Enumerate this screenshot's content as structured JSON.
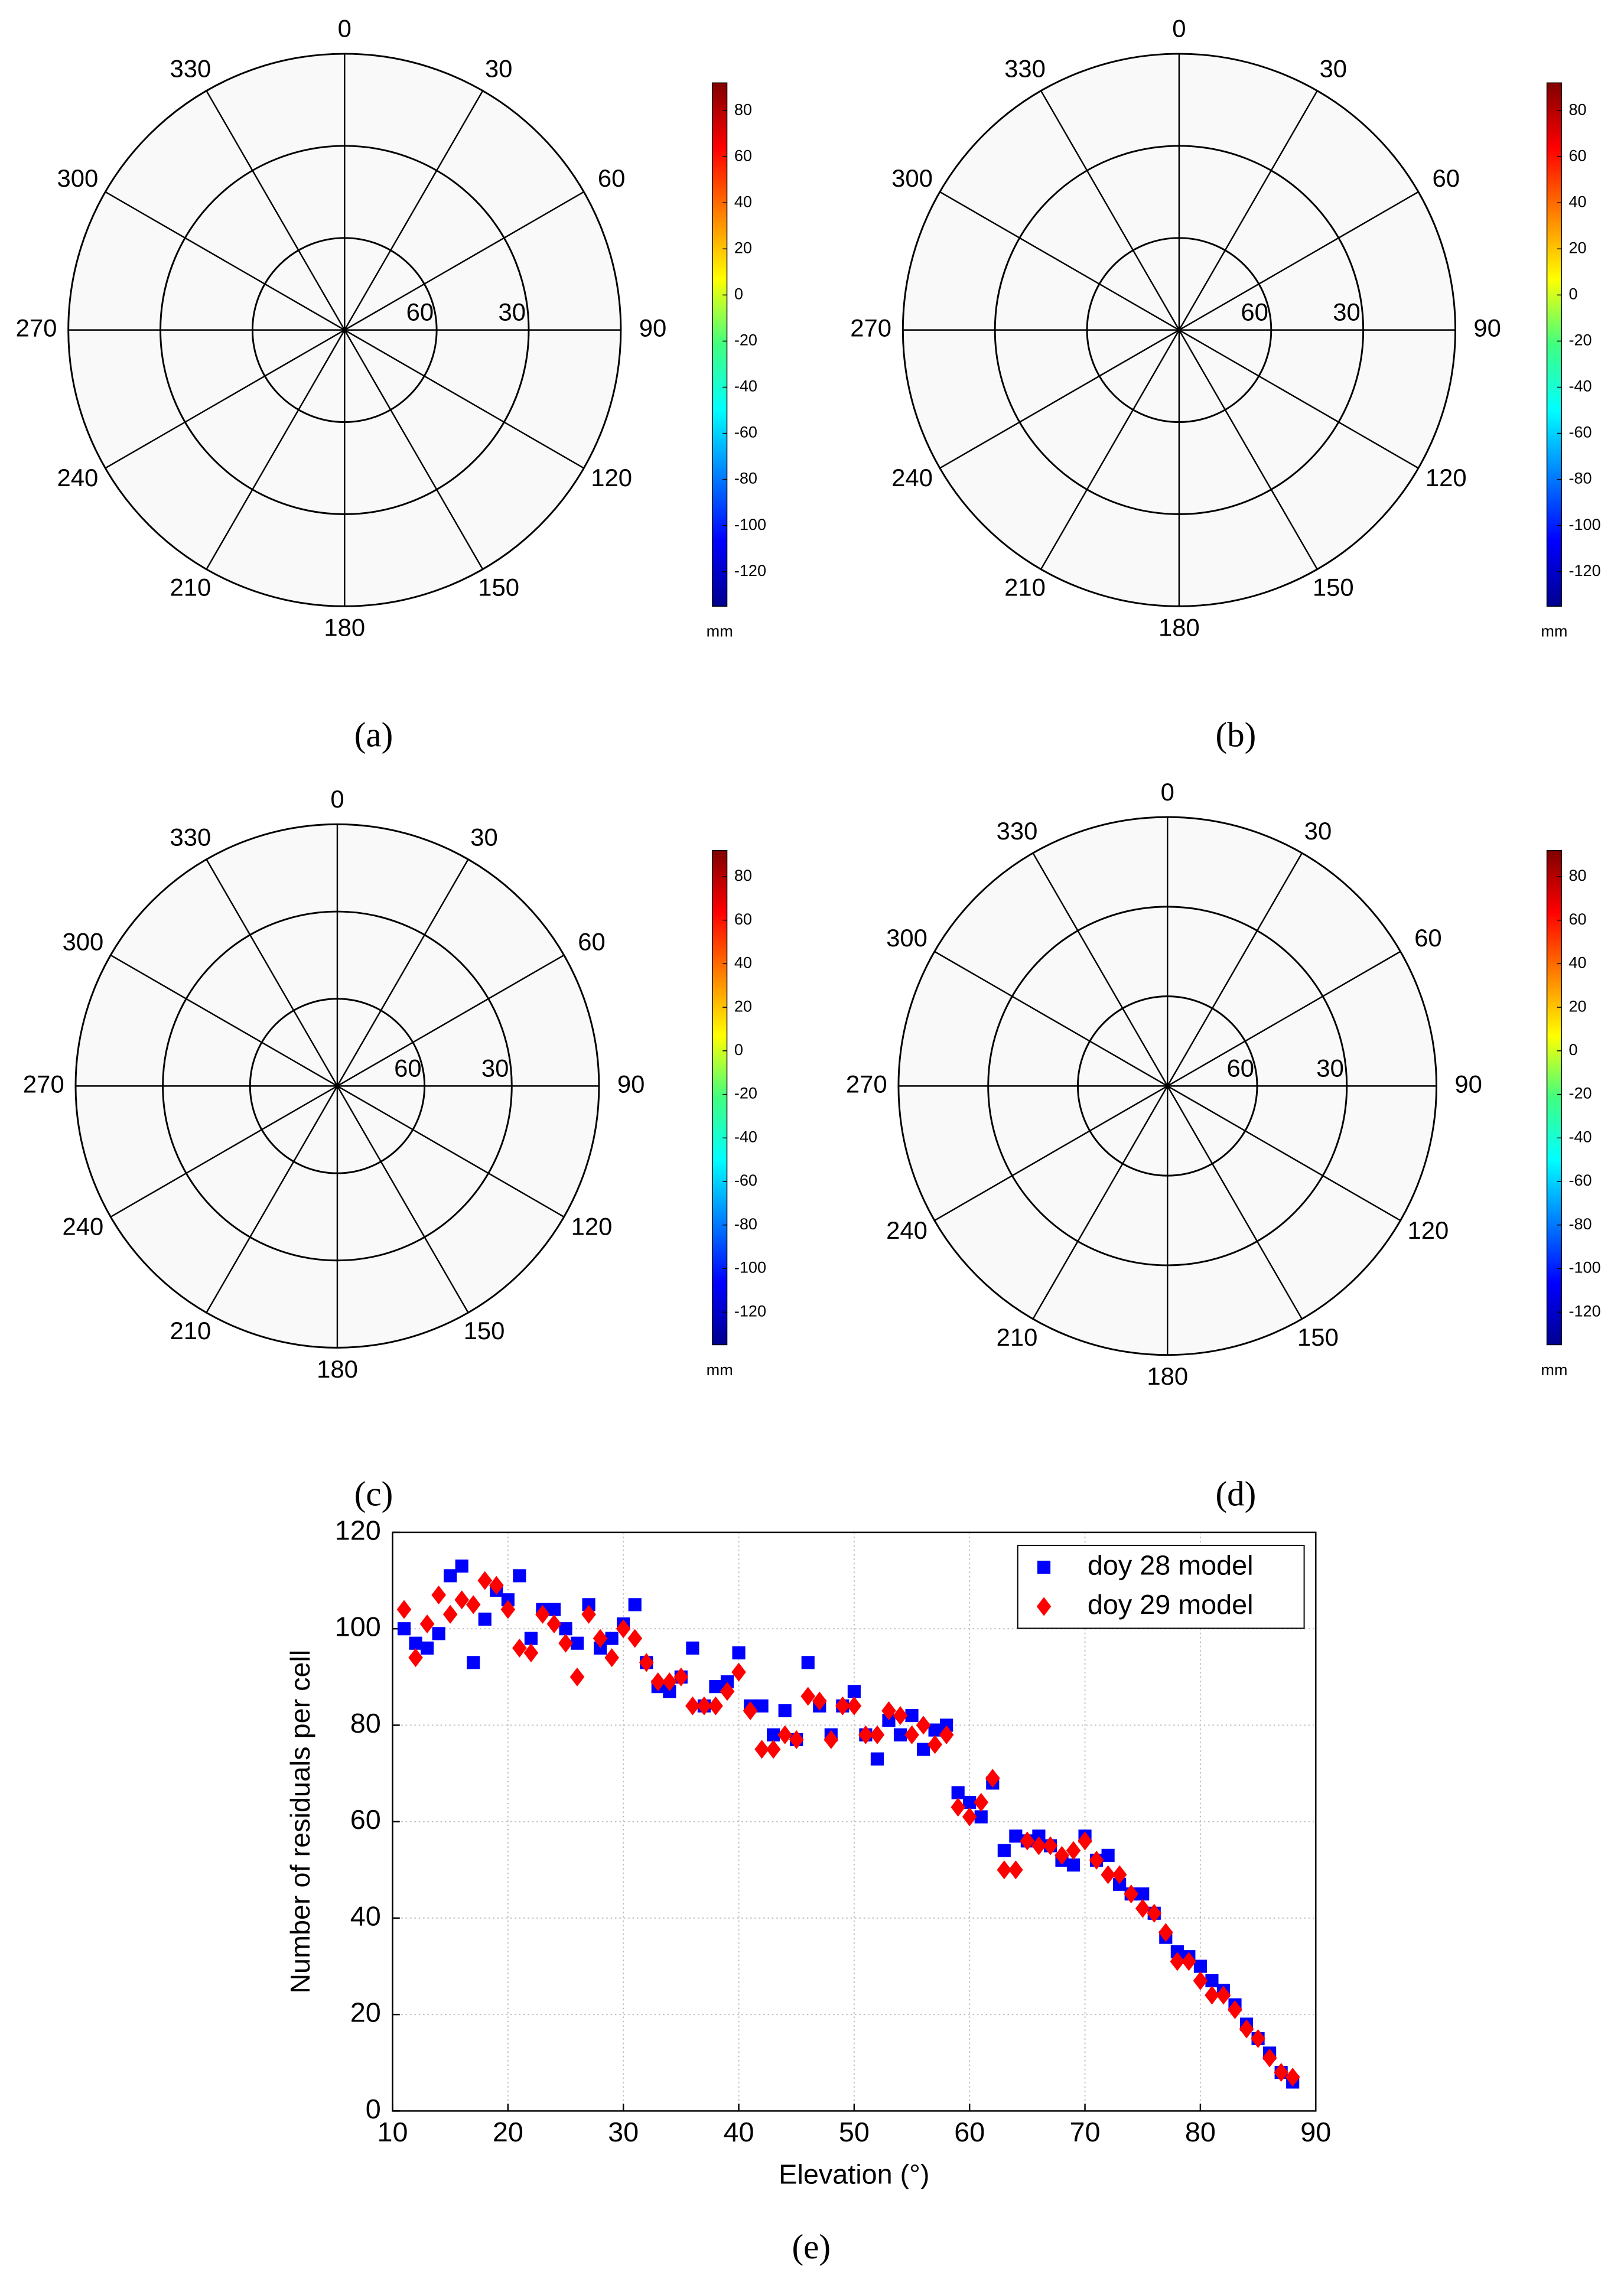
{
  "chart_data": [
    {
      "type": "polar",
      "label": "(a)",
      "theta_ticks": [
        0,
        30,
        60,
        90,
        120,
        150,
        180,
        210,
        240,
        270,
        300,
        330
      ],
      "rlim": [
        90,
        0
      ],
      "rticks": [
        60,
        30
      ],
      "clim": [
        -135,
        92
      ],
      "cticks": [
        80,
        60,
        40,
        20,
        0,
        -20,
        -40,
        -60,
        -80,
        -100,
        -120
      ],
      "colorbar_label": "mm",
      "colormap": "jet"
    },
    {
      "type": "polar",
      "label": "(b)",
      "theta_ticks": [
        0,
        30,
        60,
        90,
        120,
        150,
        180,
        210,
        240,
        270,
        300,
        330
      ],
      "rlim": [
        90,
        0
      ],
      "rticks": [
        60,
        30
      ],
      "clim": [
        -135,
        92
      ],
      "cticks": [
        80,
        60,
        40,
        20,
        0,
        -20,
        -40,
        -60,
        -80,
        -100,
        -120
      ],
      "colorbar_label": "mm",
      "colormap": "jet"
    },
    {
      "type": "polar",
      "label": "(c)",
      "theta_ticks": [
        0,
        30,
        60,
        90,
        120,
        150,
        180,
        210,
        240,
        270,
        300,
        330
      ],
      "rlim": [
        90,
        0
      ],
      "rticks": [
        60,
        30
      ],
      "clim": [
        -135,
        92
      ],
      "cticks": [
        80,
        60,
        40,
        20,
        0,
        -20,
        -40,
        -60,
        -80,
        -100,
        -120
      ],
      "colorbar_label": "mm",
      "colormap": "jet"
    },
    {
      "type": "polar",
      "label": "(d)",
      "theta_ticks": [
        0,
        30,
        60,
        90,
        120,
        150,
        180,
        210,
        240,
        270,
        300,
        330
      ],
      "rlim": [
        90,
        0
      ],
      "rticks": [
        60,
        30
      ],
      "clim": [
        -135,
        92
      ],
      "cticks": [
        80,
        60,
        40,
        20,
        0,
        -20,
        -40,
        -60,
        -80,
        -100,
        -120
      ],
      "colorbar_label": "mm",
      "colormap": "jet"
    },
    {
      "type": "scatter",
      "label": "(e)",
      "x_label": "Elevation (°)",
      "y_label": "Number of residuals per cell",
      "x": [
        11,
        12,
        13,
        14,
        15,
        16,
        17,
        18,
        19,
        20,
        21,
        22,
        23,
        24,
        25,
        26,
        27,
        28,
        29,
        30,
        31,
        32,
        33,
        34,
        35,
        36,
        37,
        38,
        39,
        40,
        41,
        42,
        43,
        44,
        45,
        46,
        47,
        48,
        49,
        50,
        51,
        52,
        53,
        54,
        55,
        56,
        57,
        58,
        59,
        60,
        61,
        62,
        63,
        64,
        65,
        66,
        67,
        68,
        69,
        70,
        71,
        72,
        73,
        74,
        75,
        76,
        77,
        78,
        79,
        80,
        81,
        82,
        83,
        84,
        85,
        86,
        87,
        88
      ],
      "series": [
        {
          "name": "doy 28 model",
          "color": "#0000ff",
          "marker": "square",
          "values": [
            100,
            97,
            96,
            99,
            111,
            113,
            93,
            102,
            108,
            106,
            111,
            98,
            104,
            104,
            100,
            97,
            105,
            96,
            98,
            101,
            105,
            93,
            88,
            87,
            90,
            96,
            84,
            88,
            89,
            95,
            84,
            84,
            78,
            83,
            77,
            93,
            84,
            78,
            84,
            87,
            78,
            73,
            81,
            78,
            82,
            75,
            79,
            80,
            66,
            64,
            61,
            68,
            54,
            57,
            56,
            57,
            55,
            52,
            51,
            57,
            52,
            53,
            47,
            45,
            45,
            41,
            36,
            33,
            32,
            30,
            27,
            25,
            22,
            18,
            15,
            12,
            8,
            6
          ]
        },
        {
          "name": "doy 29 model",
          "color": "#ff0000",
          "marker": "diamond",
          "values": [
            104,
            94,
            101,
            107,
            103,
            106,
            105,
            110,
            109,
            104,
            96,
            95,
            103,
            101,
            97,
            90,
            103,
            98,
            94,
            100,
            98,
            93,
            89,
            89,
            90,
            84,
            84,
            84,
            87,
            91,
            83,
            75,
            75,
            78,
            77,
            86,
            85,
            77,
            84,
            84,
            78,
            78,
            83,
            82,
            78,
            80,
            76,
            78,
            63,
            61,
            64,
            69,
            50,
            50,
            56,
            55,
            55,
            53,
            54,
            56,
            52,
            49,
            49,
            45,
            42,
            41,
            37,
            31,
            31,
            27,
            24,
            24,
            21,
            17,
            15,
            11,
            8,
            7
          ]
        }
      ],
      "xlim": [
        10,
        90
      ],
      "ylim": [
        0,
        120
      ],
      "xticks": [
        10,
        20,
        30,
        40,
        50,
        60,
        70,
        80,
        90
      ],
      "yticks": [
        0,
        20,
        40,
        60,
        80,
        100,
        120
      ],
      "grid": true,
      "legend": "upper right"
    }
  ]
}
